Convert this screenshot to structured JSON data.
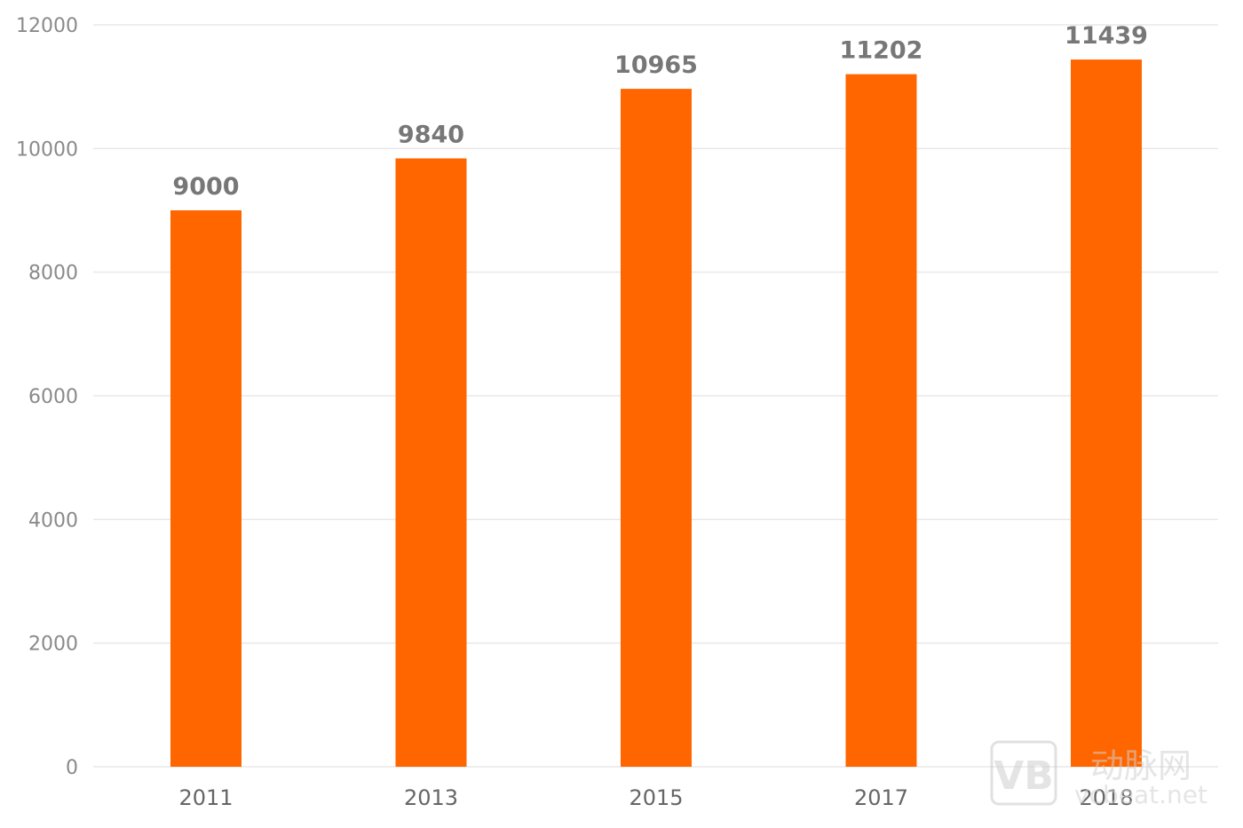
{
  "chart_data": {
    "type": "bar",
    "categories": [
      "2011",
      "2013",
      "2015",
      "2017",
      "2018"
    ],
    "values": [
      9000,
      9840,
      10965,
      11202,
      11439
    ],
    "title": "",
    "xlabel": "",
    "ylabel": "",
    "ylim": [
      0,
      12000
    ],
    "yticks": [
      0,
      2000,
      4000,
      6000,
      8000,
      10000,
      12000
    ],
    "data_labels": [
      "9000",
      "9840",
      "10965",
      "11202",
      "11439"
    ],
    "grid": true,
    "legend": "none",
    "bar_color": "#ff6600"
  },
  "watermark": {
    "logo_text": "VB",
    "brand_text": "动脉网",
    "domain_text": "vcbeat.net"
  }
}
